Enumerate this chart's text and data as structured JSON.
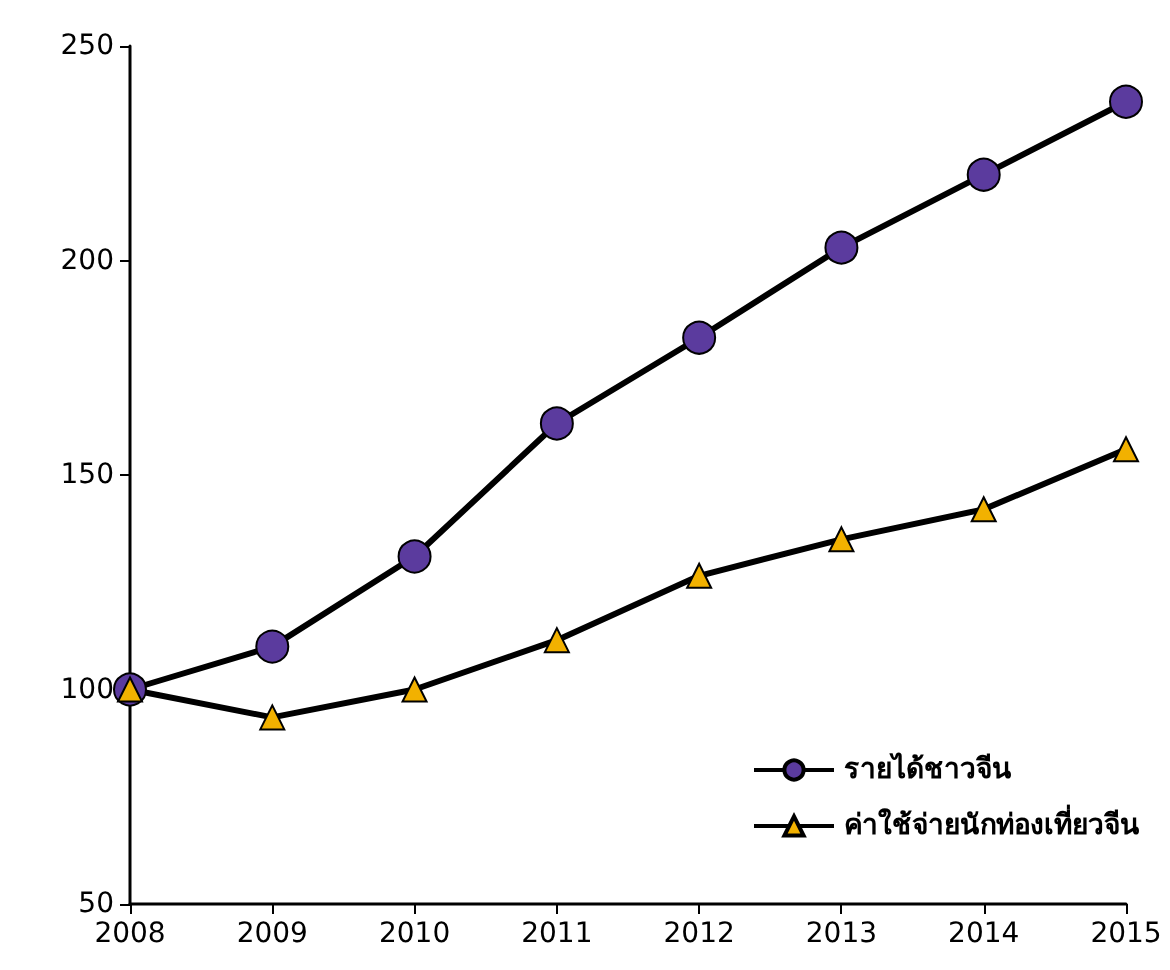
{
  "chart_data": {
    "type": "line",
    "categories": [
      "2008",
      "2009",
      "2010",
      "2011",
      "2012",
      "2013",
      "2014",
      "2015"
    ],
    "series": [
      {
        "name": "รายได้ชาวจีน",
        "color": "#5b3b9e",
        "marker": "circle",
        "values": [
          100,
          110,
          131,
          162,
          182,
          203,
          220,
          237
        ]
      },
      {
        "name": "ค่าใช้จ่ายนักท่องเที่ยวจีน",
        "color": "#f2b100",
        "marker": "triangle",
        "values": [
          100,
          93.5,
          100,
          111.5,
          126.5,
          135,
          142,
          156
        ]
      }
    ],
    "ylim": [
      50,
      250
    ],
    "yticks": [
      50,
      100,
      150,
      200,
      250
    ],
    "grid": false,
    "legend": "bottom right"
  }
}
